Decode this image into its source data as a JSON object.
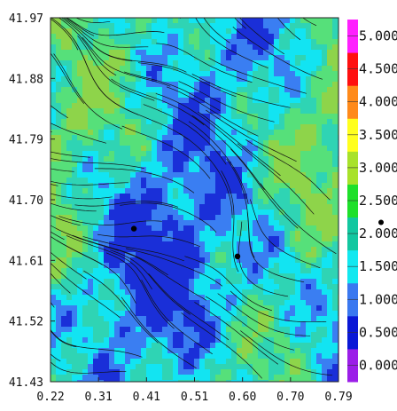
{
  "chart_data": {
    "type": "heatmap",
    "title": "",
    "xlabel": "",
    "ylabel": "",
    "x_ticks": [
      "0.22",
      "0.31",
      "0.41",
      "0.51",
      "0.60",
      "0.70",
      "0.79"
    ],
    "y_ticks": [
      "41.97",
      "41.88",
      "41.79",
      "41.70",
      "41.61",
      "41.52",
      "41.43"
    ],
    "xlim": [
      0.22,
      0.79
    ],
    "ylim": [
      41.43,
      41.97
    ],
    "grid": false,
    "overlay": "streamlines",
    "colorbar": {
      "labels": [
        "0.000",
        "0.500",
        "1.000",
        "1.500",
        "2.000",
        "2.500",
        "3.000",
        "3.500",
        "4.000",
        "4.500",
        "5.000"
      ],
      "colors": [
        "#9b1ee8",
        "#0a18d6",
        "#3a78f0",
        "#12e8f0",
        "#12c7a0",
        "#1ee02a",
        "#a8e22a",
        "#ffff1e",
        "#ff8a1a",
        "#ff1010",
        "#ff20ff"
      ],
      "min": 0,
      "max": 5,
      "marker_value": 2.2
    },
    "field_colors": [
      "#1a2fd8",
      "#3a7ef2",
      "#12e4f2",
      "#2fd4b4",
      "#56e07a",
      "#8ed44a"
    ],
    "points": [
      {
        "x": 0.385,
        "y": 41.657
      },
      {
        "x": 0.59,
        "y": 41.616
      }
    ]
  }
}
